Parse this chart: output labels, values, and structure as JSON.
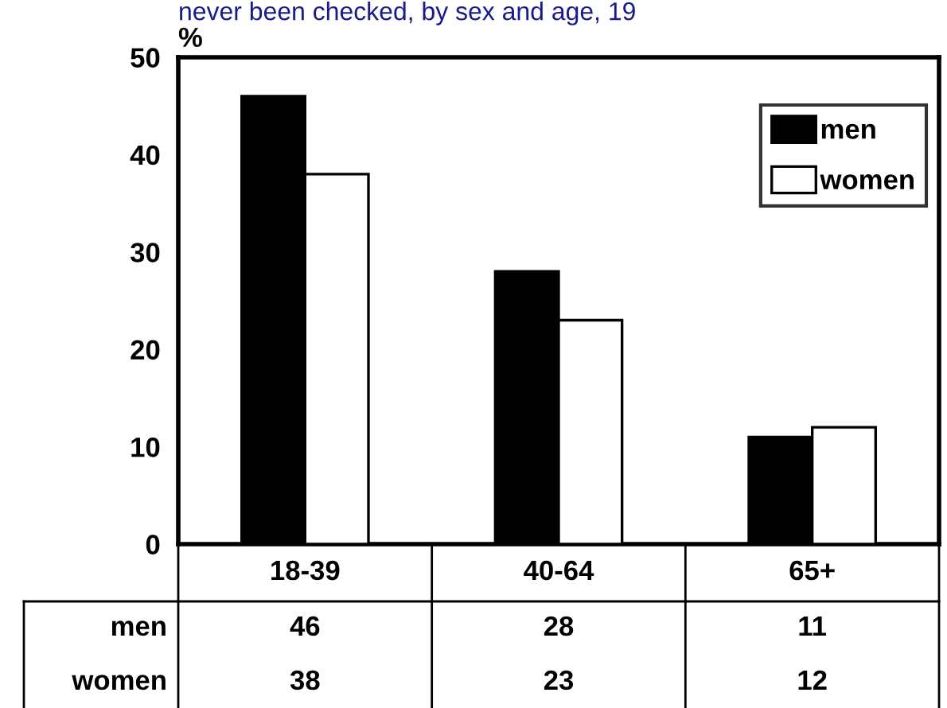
{
  "chart_data": {
    "type": "bar",
    "title": "never been checked, by sex and age, 19",
    "ylabel": "%",
    "categories": [
      "18-39",
      "40-64",
      "65+"
    ],
    "series": [
      {
        "name": "men",
        "color": "#000000",
        "values": [
          46,
          28,
          11
        ]
      },
      {
        "name": "women",
        "color": "#ffffff",
        "values": [
          38,
          23,
          12
        ]
      }
    ],
    "ylim": [
      0,
      50
    ],
    "yticks": [
      0,
      10,
      20,
      30,
      40,
      50
    ],
    "grid": false,
    "legend": "top right",
    "data_labels": true
  }
}
